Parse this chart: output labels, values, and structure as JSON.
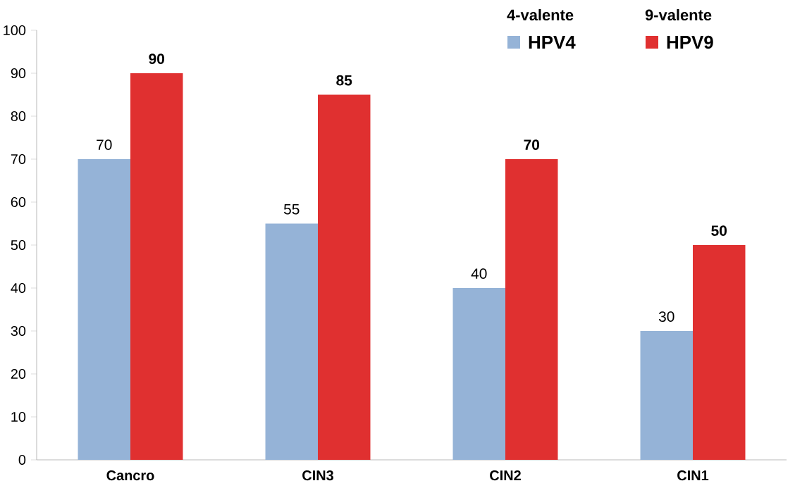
{
  "chart_data": {
    "type": "bar",
    "categories": [
      "Cancro",
      "CIN3",
      "CIN2",
      "CIN1"
    ],
    "series": [
      {
        "name": "HPV4",
        "color": "#95b3d7",
        "values": [
          70,
          55,
          40,
          30
        ]
      },
      {
        "name": "HPV9",
        "color": "#e03030",
        "values": [
          90,
          85,
          70,
          50
        ]
      }
    ],
    "ylim": [
      0,
      100
    ],
    "yticks": [
      0,
      10,
      20,
      30,
      40,
      50,
      60,
      70,
      80,
      90,
      100
    ],
    "data_labels": true,
    "grid": false,
    "legend": "top right",
    "annotations": [
      "4-valente",
      "9-valente"
    ]
  }
}
